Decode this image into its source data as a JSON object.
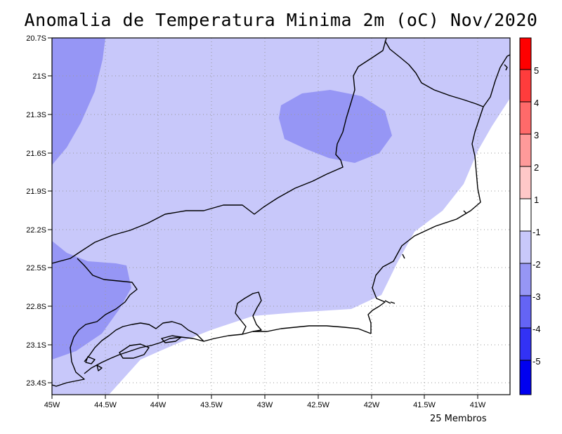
{
  "title": "Anomalia de Temperatura Minima 2m (oC) Nov/2020",
  "footnote": "25 Membros",
  "map": {
    "y_ticks": [
      "20.7S",
      "21S",
      "21.3S",
      "21.6S",
      "21.9S",
      "22.2S",
      "22.5S",
      "22.8S",
      "23.1S",
      "23.4S"
    ],
    "x_ticks": [
      "45W",
      "44.5W",
      "44W",
      "43.5W",
      "43W",
      "42.5W",
      "42W",
      "41.5W",
      "41W"
    ],
    "extent": {
      "lon": [
        -45,
        -40.7
      ],
      "lat": [
        -23.55,
        -20.7
      ]
    },
    "grid": true,
    "fill_levels": {
      "outside_range": "#ffffff",
      "minus1_to_minus2": "#c8c8fa",
      "minus2_to_minus3": "#9696f5"
    }
  },
  "colorbar": {
    "labels": [
      "5",
      "4",
      "3",
      "2",
      "1",
      "-1",
      "-2",
      "-3",
      "-4",
      "-5"
    ],
    "colors": [
      "#ff0000",
      "#ff3c3c",
      "#ff6a6a",
      "#ff9a9a",
      "#ffc8c8",
      "#ffffff",
      "#c8c8fa",
      "#9696f5",
      "#6464f5",
      "#3232f5",
      "#0000f0"
    ]
  }
}
